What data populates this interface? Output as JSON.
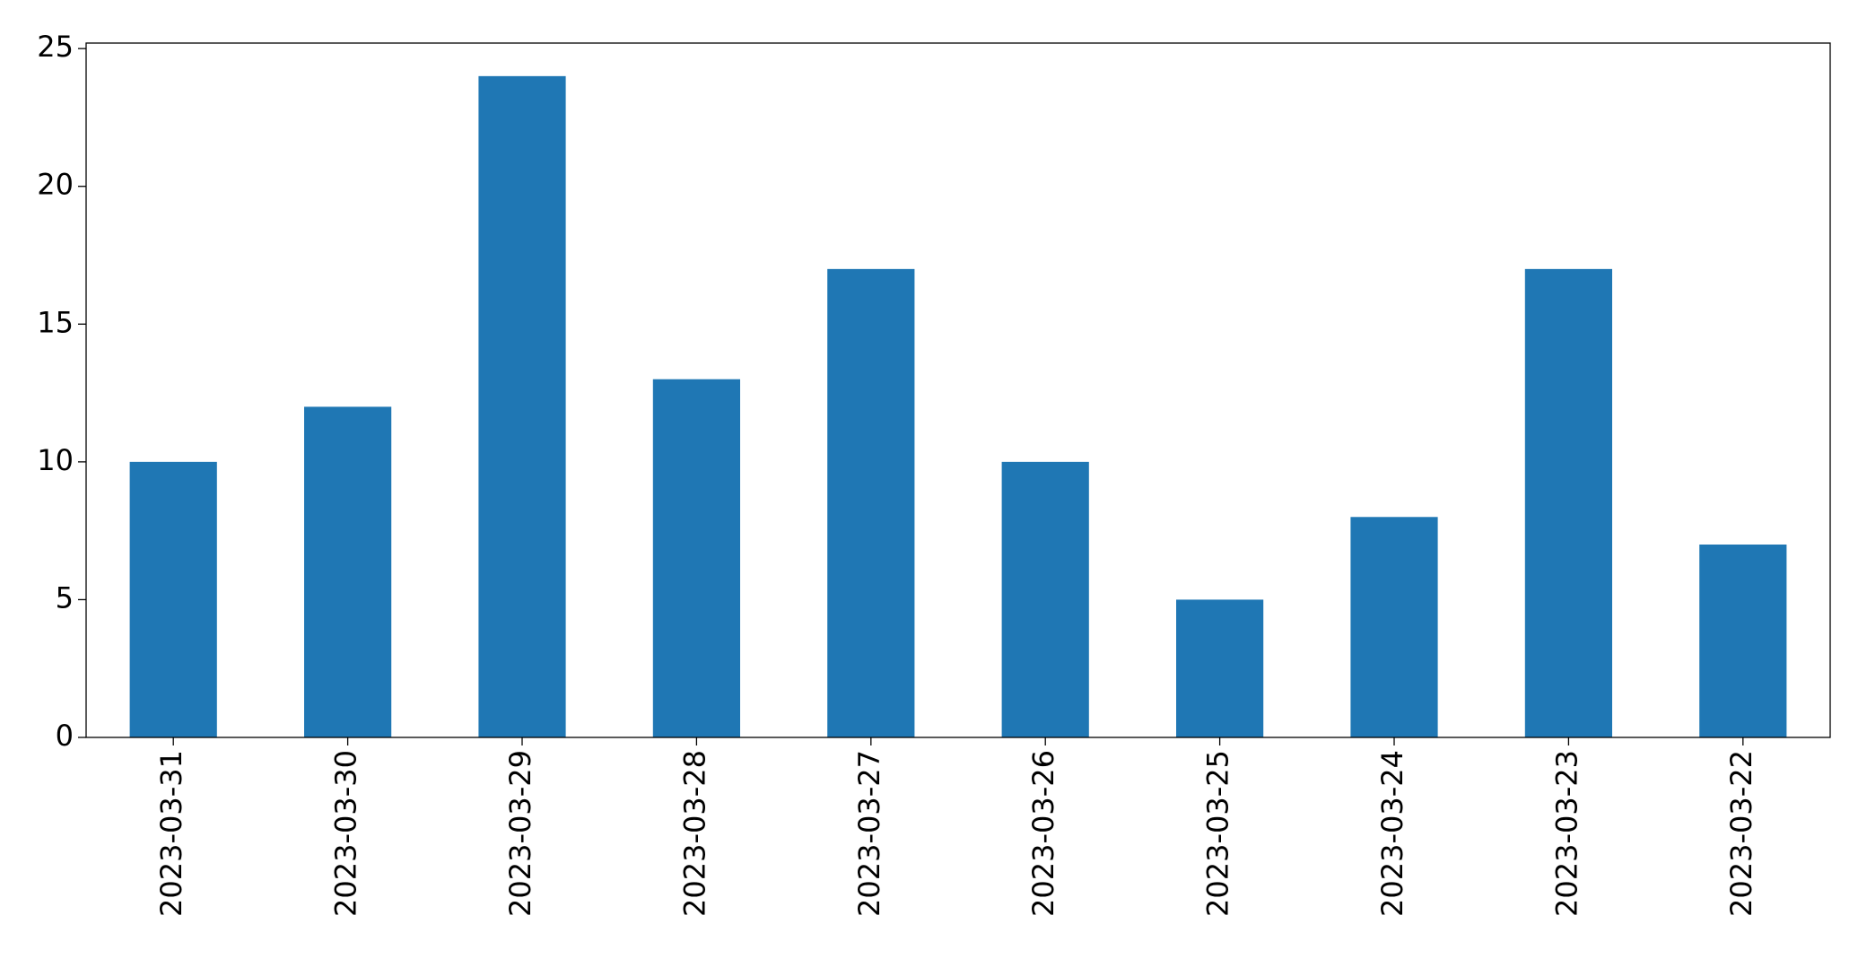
{
  "chart_data": {
    "type": "bar",
    "categories": [
      "2023-03-31",
      "2023-03-30",
      "2023-03-29",
      "2023-03-28",
      "2023-03-27",
      "2023-03-26",
      "2023-03-25",
      "2023-03-24",
      "2023-03-23",
      "2023-03-22"
    ],
    "values": [
      10,
      12,
      24,
      13,
      17,
      10,
      5,
      8,
      17,
      7
    ],
    "color": "#1f77b4",
    "ylim": [
      0,
      25.2
    ],
    "yticks": [
      0,
      5,
      10,
      15,
      20,
      25
    ],
    "grid": false
  }
}
